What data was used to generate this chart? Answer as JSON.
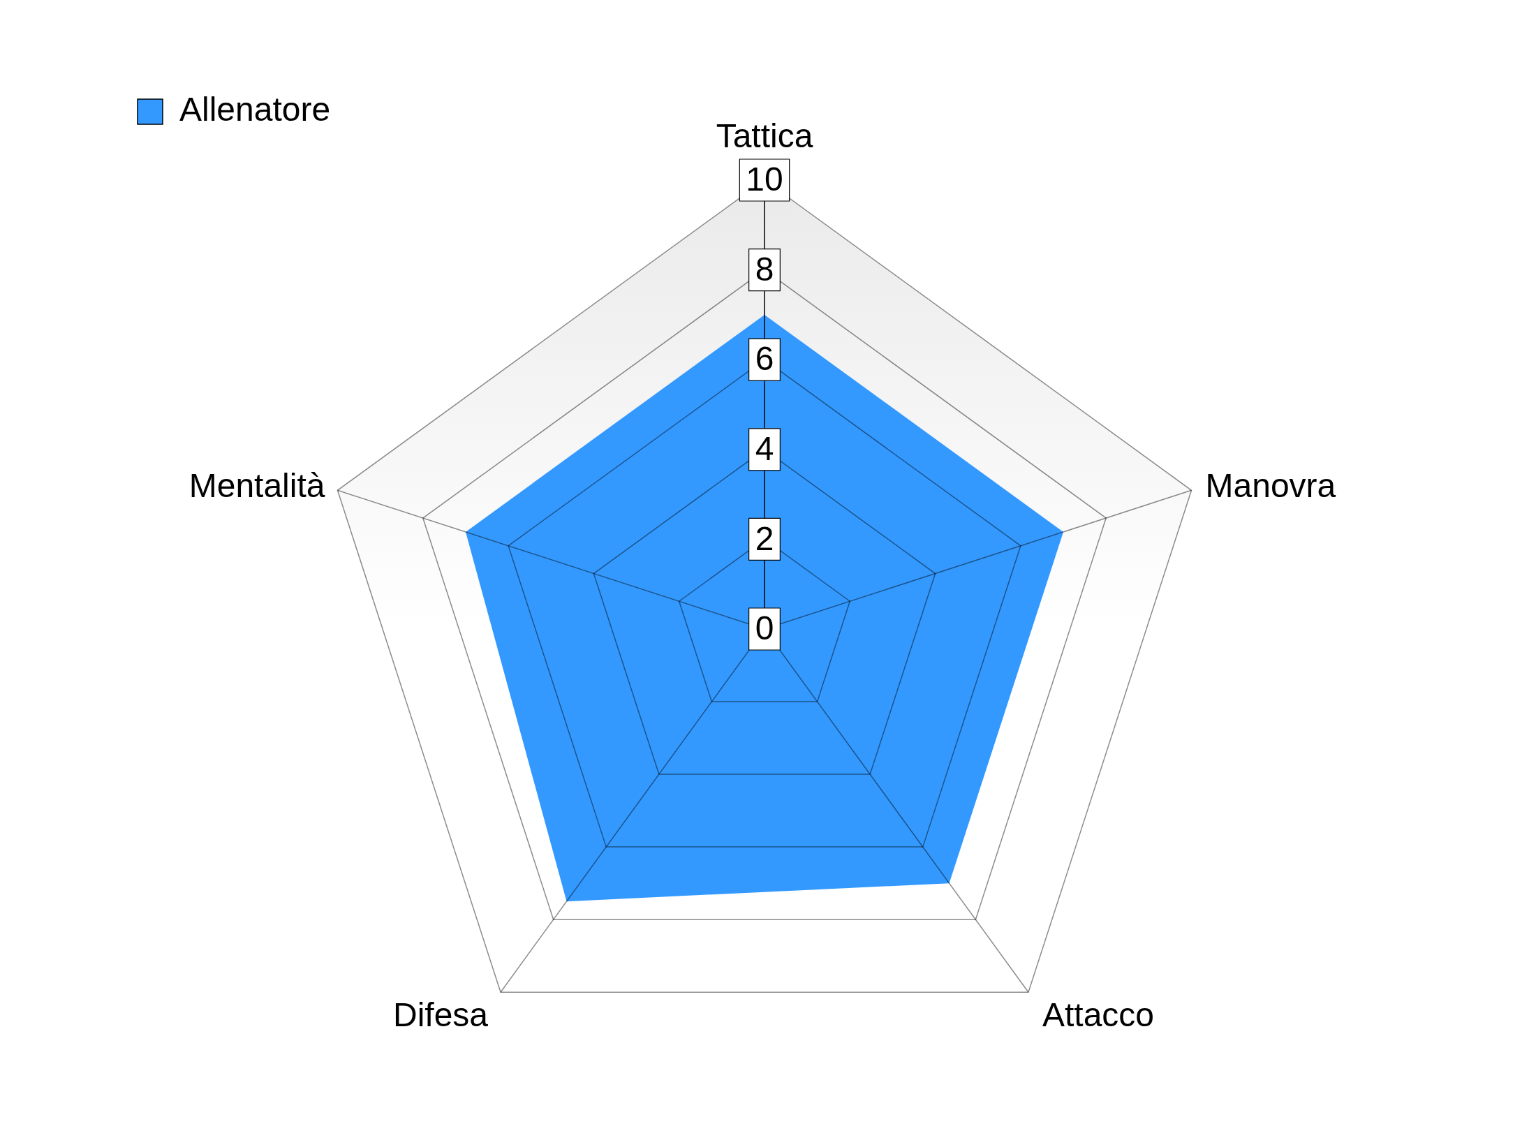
{
  "chart_data": {
    "type": "radar",
    "categories": [
      "Tattica",
      "Manovra",
      "Attacco",
      "Difesa",
      "Mentalità"
    ],
    "series": [
      {
        "name": "Allenatore",
        "color": "#3399ff",
        "values": [
          7,
          7,
          7,
          7.5,
          7
        ]
      }
    ],
    "ylim": [
      0,
      10
    ],
    "yticks": [
      0,
      2,
      4,
      6,
      8,
      10
    ],
    "grid": true,
    "legend": "top left",
    "marker": "none"
  }
}
